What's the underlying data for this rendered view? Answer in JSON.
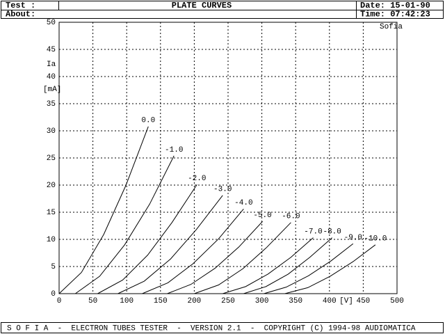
{
  "header": {
    "test": "Test :",
    "about": "About:",
    "date": "Date: 15-01-90",
    "time": "Time: 07:42:23"
  },
  "footer": "S O F I A  -  ELECTRON TUBES TESTER  -  VERSION 2.1  -  COPYRIGHT (C) 1994-98 AUDIOMATICA",
  "chart_data": {
    "type": "line",
    "title": "PLATE CURVES",
    "watermark": "Sofia",
    "y_label": "Ia",
    "y_unit": "[mA]",
    "x_label": "[V]",
    "xlim": [
      0,
      500
    ],
    "xticks": [
      0,
      50,
      100,
      150,
      200,
      250,
      300,
      350,
      400,
      450,
      500
    ],
    "ylim": [
      0,
      50
    ],
    "yticks": [
      0,
      5,
      10,
      15,
      20,
      25,
      30,
      35,
      40,
      45,
      50
    ],
    "grid": true,
    "color": "#000000",
    "series": [
      {
        "name": "0.0",
        "x": [
          0,
          33,
          66,
          99,
          132
        ],
        "values": [
          0,
          3.9,
          10.9,
          20.0,
          30.8
        ]
      },
      {
        "name": "-1.0",
        "x": [
          24,
          60,
          97,
          134,
          170
        ],
        "values": [
          0,
          3.2,
          9.0,
          16.5,
          25.4
        ]
      },
      {
        "name": "-2.0",
        "x": [
          57,
          94,
          131,
          167,
          204
        ],
        "values": [
          0,
          2.5,
          7.1,
          13.1,
          20.1
        ]
      },
      {
        "name": "-3.0",
        "x": [
          87,
          126,
          165,
          203,
          242
        ],
        "values": [
          0,
          2.3,
          6.4,
          11.8,
          18.1
        ]
      },
      {
        "name": "-4.0",
        "x": [
          123,
          161,
          198,
          236,
          273
        ],
        "values": [
          0,
          2.0,
          5.5,
          10.1,
          15.6
        ]
      },
      {
        "name": "-5.0",
        "x": [
          160,
          195,
          231,
          266,
          301
        ],
        "values": [
          0,
          1.7,
          4.7,
          8.6,
          13.3
        ]
      },
      {
        "name": "-6.0",
        "x": [
          200,
          236,
          272,
          307,
          343
        ],
        "values": [
          0,
          1.6,
          4.6,
          8.5,
          13.1
        ]
      },
      {
        "name": "-7.0",
        "x": [
          242,
          276,
          309,
          343,
          376
        ],
        "values": [
          0,
          1.3,
          3.6,
          6.7,
          10.3
        ]
      },
      {
        "name": "-8.0",
        "x": [
          273,
          306,
          339,
          371,
          404
        ],
        "values": [
          0,
          1.3,
          3.6,
          6.7,
          10.3
        ]
      },
      {
        "name": "-9.0",
        "x": [
          303,
          336,
          369,
          402,
          435
        ],
        "values": [
          0,
          1.2,
          3.3,
          6.0,
          9.2
        ]
      },
      {
        "name": "-10.0",
        "x": [
          334,
          368,
          401,
          435,
          468
        ],
        "values": [
          0,
          1.1,
          3.2,
          5.9,
          9.0
        ]
      }
    ]
  }
}
